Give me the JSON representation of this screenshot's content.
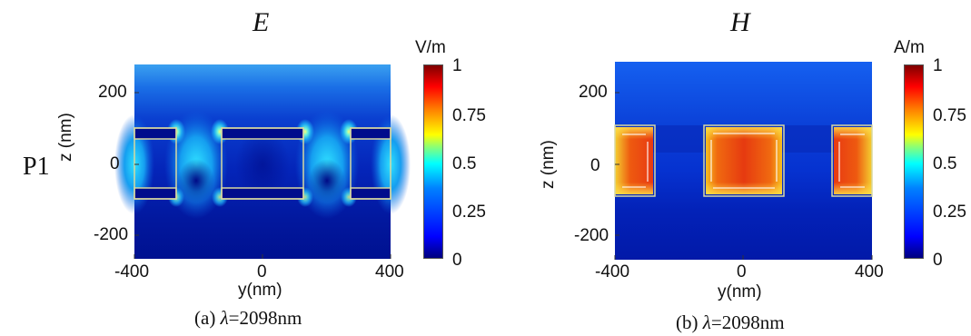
{
  "row_label": "P1",
  "panels": [
    {
      "title": "E",
      "unit": "V/m",
      "xlabel": "y(nm)",
      "ylabel": "z (nm)",
      "xticks": [
        "-400",
        "0",
        "400"
      ],
      "yticks": [
        "200",
        "0",
        "-200"
      ],
      "colorbar_ticks": [
        "1",
        "0.75",
        "0.5",
        "0.25",
        "0"
      ],
      "caption_prefix": "(a) ",
      "caption_symbol": "λ",
      "caption_value": "=2098nm"
    },
    {
      "title": "H",
      "unit": "A/m",
      "xlabel": "y(nm)",
      "ylabel": "z (nm)",
      "xticks": [
        "-400",
        "0",
        "400"
      ],
      "yticks": [
        "200",
        "0",
        "-200"
      ],
      "colorbar_ticks": [
        "1",
        "0.75",
        "0.5",
        "0.25",
        "0"
      ],
      "caption_prefix": "(b) ",
      "caption_symbol": "λ",
      "caption_value": "=2098nm"
    }
  ],
  "colors": {
    "jet_low": "#00007f",
    "jet_high": "#7f0000",
    "outline": "#d8d8a0"
  }
}
